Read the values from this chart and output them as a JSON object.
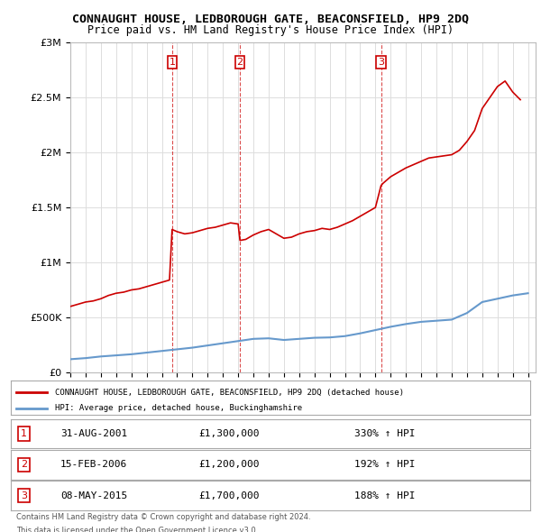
{
  "title": "CONNAUGHT HOUSE, LEDBOROUGH GATE, BEACONSFIELD, HP9 2DQ",
  "subtitle": "Price paid vs. HM Land Registry's House Price Index (HPI)",
  "legend_line1": "CONNAUGHT HOUSE, LEDBOROUGH GATE, BEACONSFIELD, HP9 2DQ (detached house)",
  "legend_line2": "HPI: Average price, detached house, Buckinghamshire",
  "footer1": "Contains HM Land Registry data © Crown copyright and database right 2024.",
  "footer2": "This data is licensed under the Open Government Licence v3.0.",
  "transactions": [
    {
      "num": 1,
      "date": "31-AUG-2001",
      "price": 1300000,
      "pct": "330%",
      "year": 2001.67
    },
    {
      "num": 2,
      "date": "15-FEB-2006",
      "price": 1200000,
      "pct": "192%",
      "year": 2006.12
    },
    {
      "num": 3,
      "date": "08-MAY-2015",
      "price": 1700000,
      "pct": "188%",
      "year": 2015.37
    }
  ],
  "red_color": "#cc0000",
  "blue_color": "#6699cc",
  "vline_color": "#cc0000",
  "bg_color": "#ffffff",
  "grid_color": "#dddddd",
  "ylim": [
    0,
    3000000
  ],
  "xlim_start": 1995.0,
  "xlim_end": 2025.5,
  "hpi_base_year": 1995,
  "hpi_base_value": 120000,
  "red_series": {
    "years": [
      1995.0,
      1995.5,
      1996.0,
      1996.5,
      1997.0,
      1997.5,
      1998.0,
      1998.5,
      1999.0,
      1999.5,
      2000.0,
      2000.5,
      2001.0,
      2001.5,
      2001.67,
      2002.0,
      2002.5,
      2003.0,
      2003.5,
      2004.0,
      2004.5,
      2005.0,
      2005.5,
      2006.0,
      2006.12,
      2006.5,
      2007.0,
      2007.5,
      2008.0,
      2008.5,
      2009.0,
      2009.5,
      2010.0,
      2010.5,
      2011.0,
      2011.5,
      2012.0,
      2012.5,
      2013.0,
      2013.5,
      2014.0,
      2014.5,
      2015.0,
      2015.37,
      2015.5,
      2016.0,
      2016.5,
      2017.0,
      2017.5,
      2018.0,
      2018.5,
      2019.0,
      2019.5,
      2020.0,
      2020.5,
      2021.0,
      2021.5,
      2022.0,
      2022.5,
      2023.0,
      2023.5,
      2024.0,
      2024.5
    ],
    "values": [
      600000,
      620000,
      640000,
      650000,
      670000,
      700000,
      720000,
      730000,
      750000,
      760000,
      780000,
      800000,
      820000,
      840000,
      1300000,
      1280000,
      1260000,
      1270000,
      1290000,
      1310000,
      1320000,
      1340000,
      1360000,
      1350000,
      1200000,
      1210000,
      1250000,
      1280000,
      1300000,
      1260000,
      1220000,
      1230000,
      1260000,
      1280000,
      1290000,
      1310000,
      1300000,
      1320000,
      1350000,
      1380000,
      1420000,
      1460000,
      1500000,
      1700000,
      1720000,
      1780000,
      1820000,
      1860000,
      1890000,
      1920000,
      1950000,
      1960000,
      1970000,
      1980000,
      2020000,
      2100000,
      2200000,
      2400000,
      2500000,
      2600000,
      2650000,
      2550000,
      2480000
    ]
  },
  "blue_series": {
    "years": [
      1995.0,
      1996.0,
      1997.0,
      1998.0,
      1999.0,
      2000.0,
      2001.0,
      2002.0,
      2003.0,
      2004.0,
      2005.0,
      2006.0,
      2007.0,
      2008.0,
      2009.0,
      2010.0,
      2011.0,
      2012.0,
      2013.0,
      2014.0,
      2015.0,
      2016.0,
      2017.0,
      2018.0,
      2019.0,
      2020.0,
      2021.0,
      2022.0,
      2023.0,
      2024.0,
      2025.0
    ],
    "values": [
      120000,
      130000,
      145000,
      155000,
      165000,
      180000,
      195000,
      210000,
      225000,
      245000,
      265000,
      285000,
      305000,
      310000,
      295000,
      305000,
      315000,
      318000,
      330000,
      355000,
      385000,
      415000,
      440000,
      460000,
      470000,
      480000,
      540000,
      640000,
      670000,
      700000,
      720000
    ]
  }
}
